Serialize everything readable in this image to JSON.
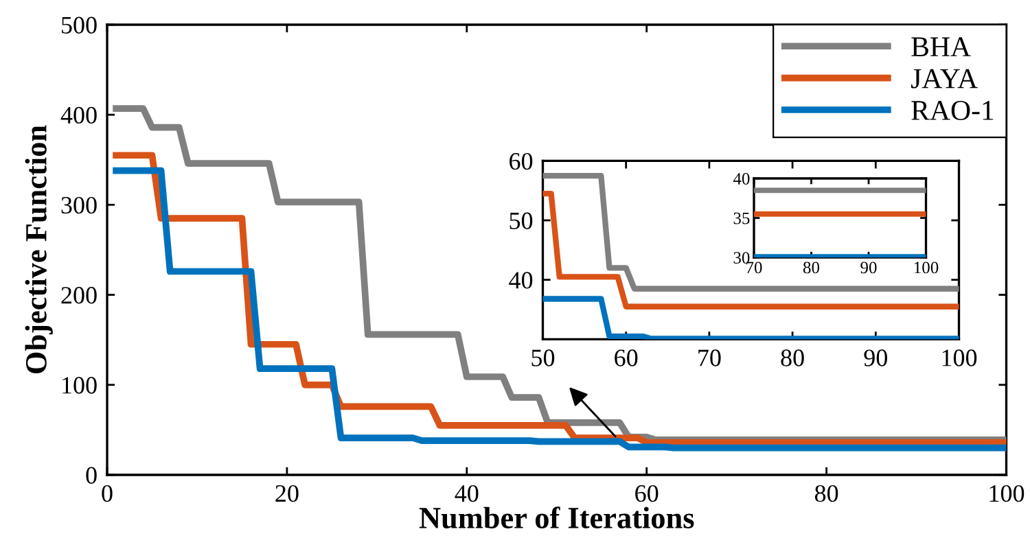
{
  "chart_data": [
    {
      "type": "line",
      "xlabel": "Number of Iterations",
      "ylabel": "Objective Function",
      "xlim": [
        0,
        100
      ],
      "ylim": [
        0,
        500
      ],
      "xticks": [
        0,
        20,
        40,
        60,
        80,
        100
      ],
      "yticks": [
        0,
        100,
        200,
        300,
        400,
        500
      ],
      "legend": "top right",
      "grid": false,
      "marker": "none",
      "line_style": "solid",
      "series": [
        {
          "name": "BHA",
          "color": "#808080",
          "x": [
            1,
            4,
            5,
            8,
            9,
            18,
            19,
            28,
            29,
            39,
            40,
            44,
            45,
            48,
            49,
            57,
            58,
            60,
            61,
            100
          ],
          "values": [
            407,
            407,
            386,
            386,
            346,
            346,
            303,
            303,
            156,
            156,
            109,
            109,
            86,
            86,
            58,
            58,
            42,
            42,
            39,
            39
          ]
        },
        {
          "name": "JAYA",
          "color": "#d95319",
          "x": [
            1,
            5,
            6,
            15,
            16,
            21,
            22,
            25,
            26,
            36,
            37,
            51,
            52,
            59,
            60,
            100
          ],
          "values": [
            355,
            355,
            285,
            285,
            145,
            145,
            100,
            100,
            76,
            76,
            55,
            55,
            41,
            41,
            36,
            36
          ]
        },
        {
          "name": "RAO-1",
          "color": "#0072bd",
          "x": [
            1,
            6,
            7,
            16,
            17,
            25,
            26,
            34,
            35,
            47,
            48,
            57,
            58,
            62,
            63,
            100
          ],
          "values": [
            338,
            338,
            226,
            226,
            118,
            118,
            41,
            41,
            38,
            38,
            37,
            37,
            31,
            31,
            30,
            30
          ]
        }
      ]
    },
    {
      "type": "line",
      "xlim": [
        50,
        100
      ],
      "ylim": [
        30,
        60
      ],
      "xticks": [
        50,
        60,
        70,
        80,
        90,
        100
      ],
      "yticks": [
        {
          "value": 30,
          "label": null
        },
        40,
        50,
        60
      ],
      "grid": false,
      "marker": "none",
      "line_style": "solid",
      "series": [
        {
          "color": "#808080",
          "x": [
            50,
            57,
            58,
            60,
            61,
            100
          ],
          "values": [
            57.5,
            57.5,
            42,
            42,
            38.5,
            38.5
          ]
        },
        {
          "color": "#d95319",
          "x": [
            50,
            51,
            52,
            59,
            60,
            100
          ],
          "values": [
            54.5,
            54.5,
            40.5,
            40.5,
            35.5,
            35.5
          ]
        },
        {
          "color": "#0072bd",
          "x": [
            50,
            57,
            58,
            62,
            63,
            100
          ],
          "values": [
            36.8,
            36.8,
            30.5,
            30.5,
            30.1,
            30.1
          ]
        }
      ]
    },
    {
      "type": "line",
      "xlim": [
        70,
        100
      ],
      "ylim": [
        30,
        40
      ],
      "xticks": [
        70,
        80,
        90,
        100
      ],
      "yticks": [
        30,
        35,
        40
      ],
      "grid": false,
      "marker": "none",
      "line_style": "solid",
      "series": [
        {
          "color": "#808080",
          "x": [
            70,
            100
          ],
          "values": [
            38.5,
            38.5
          ]
        },
        {
          "color": "#d95319",
          "x": [
            70,
            100
          ],
          "values": [
            35.5,
            35.5
          ]
        },
        {
          "color": "#0072bd",
          "x": [
            70,
            100
          ],
          "values": [
            30.1,
            30.1
          ]
        }
      ]
    }
  ]
}
